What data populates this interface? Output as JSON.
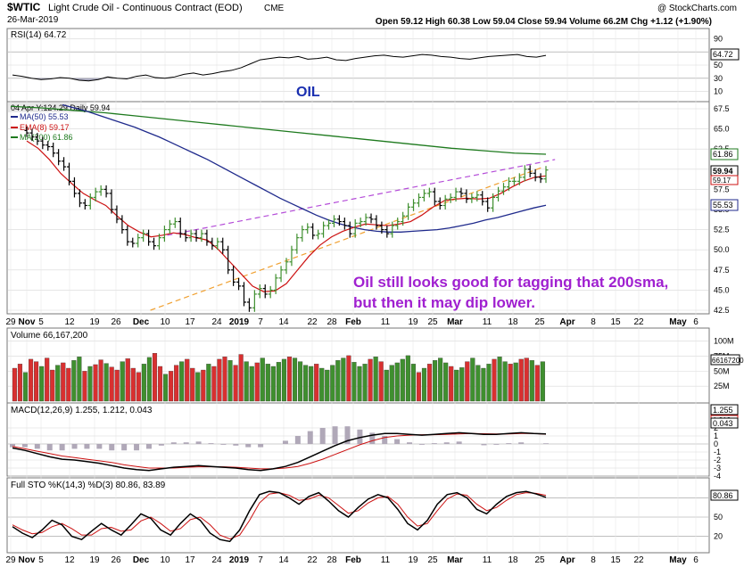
{
  "header": {
    "symbol": "$WTIC",
    "title": "Light Crude Oil - Continuous Contract (EOD)",
    "exchange": "CME",
    "date": "26-Mar-2019",
    "watermark": "@ StockCharts.com",
    "ohlc": "Open 59.12  High 60.38  Low 59.04  Close 59.94  Volume 66.2M  Chg +1.12 (+1.90%)"
  },
  "colors": {
    "price_line": "#000000",
    "ma50": "#1f2a8c",
    "ema8": "#cc1111",
    "ma200": "#1e7a1e",
    "resistance": "#b44cd8",
    "support": "#f0a030",
    "vol_up": "#3f8f2f",
    "vol_down": "#d83030",
    "annotation": "#a020d0",
    "oil_label": "#1a2fb0",
    "grid": "#d8d8d8",
    "panel_bg": "#ffffff"
  },
  "panels": {
    "rsi": {
      "label": "RSI(14) 64.72",
      "value_badge": "64.72",
      "ticks": [
        "90",
        "70",
        "50",
        "30",
        "10"
      ]
    },
    "price": {
      "legend": [
        "04 Apr Y:124.29 Daily 59.94",
        "MA(50) 55.53",
        "EMA(8) 59.17",
        "MA(200) 61.86"
      ],
      "ticks": [
        "67.5",
        "65.0",
        "62.5",
        "60.0",
        "57.5",
        "55.0",
        "52.5",
        "50.0",
        "47.5",
        "45.0",
        "42.5"
      ],
      "badges": {
        "ma200": "61.86",
        "close": "59.94",
        "ema8": "59.17",
        "ma50": "55.53"
      }
    },
    "volume": {
      "label": "Volume 66,167,200",
      "ticks": [
        "100M",
        "75M",
        "50M",
        "25M"
      ],
      "badge": "66167200"
    },
    "macd": {
      "label": "MACD(12,26,9) 1.255, 1.212, 0.043",
      "ticks": [
        "2",
        "1",
        "0",
        "-1",
        "-2",
        "-3",
        "-4"
      ],
      "badges": [
        "1.255",
        "1.212",
        "0.043"
      ]
    },
    "sto": {
      "label": "Full STO %K(14,3) %D(3) 80.86, 83.89",
      "ticks": [
        "80",
        "50",
        "20"
      ],
      "badge": "80.86"
    }
  },
  "x_axis_labels": [
    "29",
    "Nov",
    "5",
    "12",
    "19",
    "26",
    "Dec",
    "10",
    "17",
    "24",
    "2019",
    "7",
    "14",
    "22",
    "28",
    "Feb",
    "11",
    "19",
    "25",
    "Mar",
    "11",
    "18",
    "25",
    "Apr",
    "8",
    "15",
    "22",
    "May",
    "6"
  ],
  "annotations": {
    "oil": "OIL",
    "comment_line1": "Oil still looks good for tagging that 200sma,",
    "comment_line2": "but then it may dip lower."
  },
  "chart_data": {
    "type": "candlestick",
    "title": "Light Crude Oil - Continuous Contract (EOD)",
    "price_axis_range": [
      42.5,
      67.5
    ],
    "last": {
      "open": 59.12,
      "high": 60.38,
      "low": 59.04,
      "close": 59.94,
      "volume": "66.2M",
      "change": "+1.12",
      "change_pct": "+1.90%"
    },
    "close_series": [
      64.5,
      64.0,
      63.5,
      63.0,
      62.8,
      62.0,
      61.0,
      60.3,
      58.5,
      57.0,
      55.8,
      55.5,
      56.5,
      57.2,
      57.5,
      57.0,
      55.0,
      53.8,
      52.5,
      51.0,
      50.8,
      51.5,
      52.0,
      51.0,
      50.5,
      51.5,
      52.5,
      53.2,
      53.5,
      52.0,
      51.5,
      52.0,
      51.5,
      52.0,
      51.0,
      50.5,
      51.0,
      50.0,
      47.5,
      46.0,
      45.5,
      43.5,
      42.8,
      44.5,
      45.2,
      44.5,
      45.0,
      46.5,
      47.5,
      48.5,
      50.0,
      51.5,
      52.5,
      52.8,
      51.8,
      52.0,
      53.0,
      53.3,
      53.8,
      53.5,
      53.0,
      52.0,
      53.3,
      53.5,
      54.0,
      53.8,
      53.0,
      52.5,
      52.0,
      53.0,
      53.5,
      54.2,
      55.3,
      55.8,
      56.5,
      57.0,
      57.2,
      56.0,
      55.5,
      56.3,
      56.5,
      57.2,
      57.0,
      56.3,
      56.5,
      56.8,
      56.0,
      55.2,
      56.5,
      57.3,
      57.8,
      58.5,
      58.5,
      59.0,
      60.0,
      59.5,
      59.0,
      58.8,
      59.9
    ],
    "series": [
      {
        "name": "MA(50)",
        "values": [
          68.0,
          67.6,
          67.2,
          66.7,
          66.2,
          65.7,
          65.2,
          64.6,
          64.0,
          63.3,
          62.6,
          61.9,
          61.2,
          60.4,
          59.6,
          58.8,
          58.0,
          57.2,
          56.4,
          55.7,
          55.0,
          54.3,
          53.7,
          53.2,
          52.8,
          52.5,
          52.3,
          52.2,
          52.2,
          52.3,
          52.4,
          52.5,
          52.7,
          53.0,
          53.3,
          53.7,
          54.0,
          54.4,
          54.8,
          55.2,
          55.53
        ]
      },
      {
        "name": "EMA(8)",
        "values": [
          63.5,
          62.6,
          61.2,
          59.5,
          58.2,
          57.0,
          56.2,
          55.5,
          54.2,
          53.0,
          52.2,
          51.6,
          51.8,
          52.1,
          51.9,
          51.5,
          51.2,
          50.0,
          48.5,
          47.0,
          45.5,
          44.8,
          44.9,
          45.8,
          47.5,
          49.2,
          50.6,
          51.6,
          52.3,
          52.8,
          53.2,
          53.1,
          53.0,
          53.2,
          53.5,
          54.3,
          55.3,
          56.1,
          56.3,
          56.4,
          56.3,
          56.4,
          57.0,
          57.8,
          58.5,
          59.0,
          59.17
        ]
      },
      {
        "name": "MA(200)",
        "values": [
          67.8,
          67.6,
          67.3,
          67.0,
          66.6,
          66.2,
          65.8,
          65.4,
          65.0,
          64.6,
          64.2,
          63.8,
          63.4,
          63.0,
          62.6,
          62.3,
          62.0,
          61.86
        ]
      }
    ],
    "trendlines": [
      {
        "name": "resistance",
        "from": [
          12.5,
          51.8
        ],
        "to": [
          47.0,
          61.2
        ]
      },
      {
        "name": "support",
        "from": [
          11.0,
          42.5
        ],
        "to": [
          46.0,
          60.3
        ]
      }
    ],
    "volume_values": [
      55,
      62,
      48,
      70,
      66,
      58,
      72,
      52,
      60,
      64,
      55,
      68,
      74,
      50,
      58,
      61,
      69,
      63,
      57,
      52,
      66,
      71,
      55,
      48,
      62,
      73,
      80,
      58,
      45,
      50,
      60,
      66,
      70,
      55,
      48,
      52,
      62,
      58,
      70,
      74,
      68,
      60,
      78,
      66,
      58,
      64,
      72,
      62,
      58,
      65,
      70,
      74,
      72,
      66,
      60,
      58,
      62,
      55,
      52,
      60,
      68,
      72,
      76,
      65,
      58,
      62,
      70,
      74,
      66,
      52,
      60,
      64,
      70,
      76,
      62,
      48,
      55,
      62,
      68,
      72,
      64,
      58,
      52,
      56,
      66,
      72,
      60,
      55,
      62,
      70,
      74,
      66,
      62,
      64,
      70,
      72,
      68,
      60,
      66
    ],
    "volume_up": [
      0,
      0,
      1,
      0,
      0,
      1,
      0,
      0,
      1,
      0,
      0,
      1,
      1,
      0,
      1,
      0,
      0,
      1,
      0,
      0,
      1,
      0,
      0,
      0,
      1,
      1,
      0,
      0,
      1,
      0,
      0,
      1,
      0,
      0,
      1,
      0,
      1,
      0,
      0,
      0,
      1,
      0,
      0,
      1,
      1,
      0,
      1,
      1,
      1,
      1,
      1,
      0,
      1,
      1,
      1,
      1,
      0,
      1,
      1,
      1,
      1,
      1,
      0,
      1,
      1,
      1,
      0,
      1,
      0,
      1,
      1,
      1,
      1,
      1,
      1,
      0,
      1,
      0,
      1,
      1,
      1,
      0,
      1,
      1,
      0,
      1,
      1,
      1,
      1,
      0,
      1,
      1,
      0,
      1,
      0,
      0,
      1,
      0,
      1
    ],
    "rsi_values": [
      35,
      33,
      30,
      28,
      29,
      31,
      30,
      27,
      26,
      28,
      32,
      30,
      29,
      33,
      35,
      31,
      30,
      32,
      36,
      38,
      35,
      37,
      40,
      42,
      46,
      52,
      58,
      60,
      62,
      61,
      63,
      59,
      60,
      62,
      58,
      57,
      60,
      62,
      64,
      65,
      63,
      62,
      64,
      66,
      65,
      63,
      62,
      60,
      59,
      61,
      63,
      64,
      65,
      66,
      63,
      62,
      64.72
    ],
    "macd_line": [
      -0.5,
      -0.8,
      -1.2,
      -1.6,
      -1.9,
      -2.0,
      -2.2,
      -2.4,
      -2.7,
      -3.0,
      -3.2,
      -3.3,
      -3.1,
      -2.9,
      -2.8,
      -2.7,
      -2.8,
      -2.9,
      -3.0,
      -3.2,
      -3.3,
      -3.1,
      -2.8,
      -2.3,
      -1.6,
      -0.9,
      -0.2,
      0.4,
      0.8,
      1.1,
      1.3,
      1.3,
      1.2,
      1.1,
      1.2,
      1.3,
      1.4,
      1.3,
      1.2,
      1.2,
      1.3,
      1.4,
      1.3,
      1.255
    ],
    "macd_signal": [
      -0.3,
      -0.6,
      -0.9,
      -1.2,
      -1.5,
      -1.7,
      -1.9,
      -2.1,
      -2.3,
      -2.6,
      -2.8,
      -3.0,
      -3.0,
      -3.0,
      -2.9,
      -2.85,
      -2.85,
      -2.85,
      -2.9,
      -3.0,
      -3.1,
      -3.1,
      -3.0,
      -2.8,
      -2.4,
      -1.9,
      -1.3,
      -0.7,
      -0.1,
      0.4,
      0.8,
      1.0,
      1.1,
      1.15,
      1.15,
      1.2,
      1.25,
      1.3,
      1.28,
      1.25,
      1.25,
      1.3,
      1.3,
      1.212
    ],
    "sto_k": [
      35,
      25,
      18,
      30,
      45,
      38,
      20,
      15,
      28,
      40,
      30,
      22,
      38,
      55,
      48,
      30,
      22,
      40,
      55,
      45,
      25,
      15,
      12,
      30,
      60,
      85,
      90,
      88,
      80,
      70,
      82,
      88,
      75,
      60,
      50,
      65,
      78,
      85,
      80,
      62,
      40,
      30,
      45,
      70,
      85,
      88,
      80,
      62,
      55,
      70,
      82,
      88,
      90,
      86,
      80.86
    ],
    "sto_d": [
      38,
      30,
      24,
      26,
      35,
      40,
      32,
      22,
      22,
      32,
      34,
      28,
      30,
      44,
      50,
      40,
      28,
      32,
      46,
      50,
      38,
      22,
      16,
      22,
      45,
      72,
      86,
      88,
      84,
      76,
      78,
      84,
      80,
      68,
      56,
      60,
      72,
      80,
      82,
      70,
      50,
      36,
      40,
      60,
      78,
      86,
      84,
      70,
      60,
      65,
      76,
      85,
      88,
      87,
      83.89
    ]
  }
}
